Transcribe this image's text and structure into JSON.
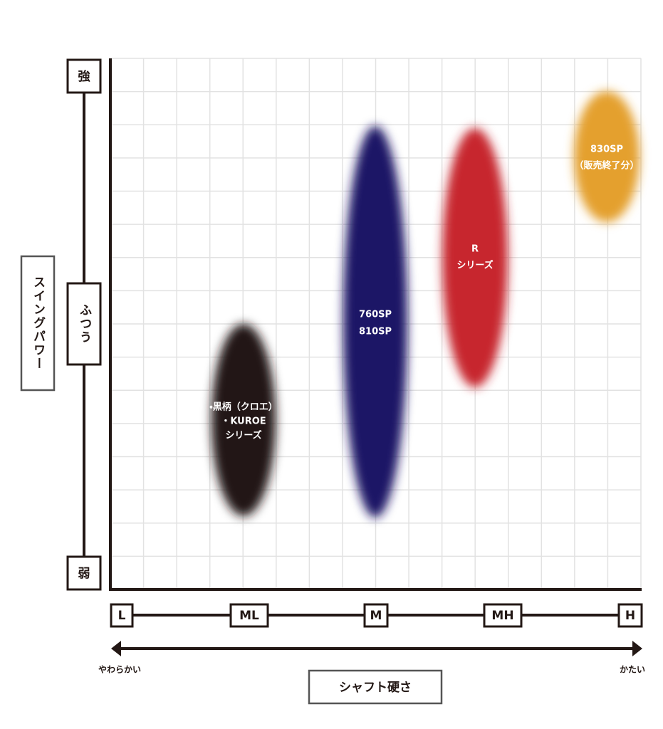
{
  "y_axis": {
    "title": "スイングパワー",
    "levels": [
      "強",
      "ふつう",
      "弱"
    ]
  },
  "x_axis": {
    "title": "シャフト硬さ",
    "levels": [
      "L",
      "ML",
      "M",
      "MH",
      "H"
    ],
    "soft": "やわらかい",
    "hard": "かたい"
  },
  "groups": [
    {
      "lines": [
        "・黒柄（クロエ）",
        "・KUROE",
        "シリーズ"
      ]
    },
    {
      "lines": [
        "760SP",
        "810SP"
      ]
    },
    {
      "lines": [
        "R",
        "シリーズ"
      ]
    },
    {
      "lines": [
        "830SP",
        "（販売終了分）"
      ]
    }
  ]
}
